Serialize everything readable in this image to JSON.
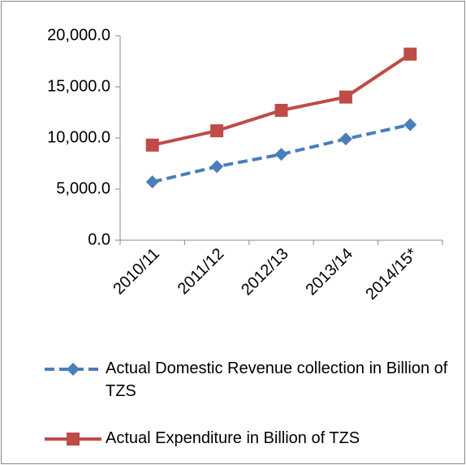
{
  "chart_data": {
    "type": "line",
    "categories": [
      "2010/11",
      "2011/12",
      "2012/13",
      "2013/14",
      "2014/15*"
    ],
    "series": [
      {
        "name": "Actual Domestic Revenue collection in Billion of TZS",
        "color": "#4a7ebb",
        "dashed": true,
        "marker": "diamond",
        "values": [
          5700,
          7200,
          8400,
          9900,
          11300
        ]
      },
      {
        "name": "Actual Expenditure in Billion of TZS",
        "color": "#be4b48",
        "dashed": false,
        "marker": "square",
        "values": [
          9300,
          10700,
          12700,
          14000,
          18200
        ]
      }
    ],
    "ylim": [
      0,
      20000
    ],
    "yticks": [
      {
        "value": 0,
        "label": "0.0"
      },
      {
        "value": 5000,
        "label": "5,000.0"
      },
      {
        "value": 10000,
        "label": "10,000.0"
      },
      {
        "value": 15000,
        "label": "15,000.0"
      },
      {
        "value": 20000,
        "label": "20,000.0"
      }
    ],
    "grid": false,
    "legend": "bottom"
  }
}
